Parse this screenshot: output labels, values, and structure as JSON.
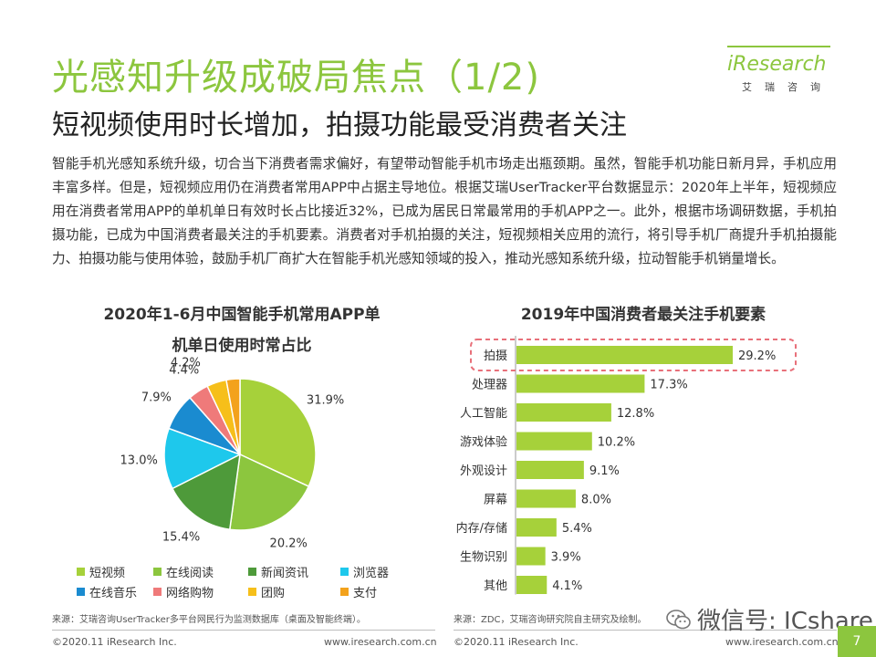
{
  "header": {
    "title": "光感知升级成破局焦点（1/2)",
    "subtitle": "短视频使用时长增加，拍摄功能最受消费者关注"
  },
  "logo": {
    "brand": "iResearch",
    "cn": "艾瑞咨询"
  },
  "intro": "智能手机光感知系统升级，切合当下消费者需求偏好，有望带动智能手机市场走出瓶颈期。虽然，智能手机功能日新月异，手机应用丰富多样。但是，短视频应用仍在消费者常用APP中占据主导地位。根据艾瑞UserTracker平台数据显示：2020年上半年，短视频应用在消费者常用APP的单机单日有效时长占比接近32%，已成为居民日常最常用的手机APP之一。此外，根据市场调研数据，手机拍摄功能，已成为中国消费者最关注的手机要素。消费者对手机拍摄的关注，短视频相关应用的流行，将引导手机厂商提升手机拍摄能力、拍摄功能与使用体验，鼓励手机厂商扩大在智能手机光感知领域的投入，推动光感知系统升级，拉动智能手机销量增长。",
  "chart_data": [
    {
      "type": "pie",
      "title_line1": "2020年1-6月中国智能手机常用APP单",
      "title_line2": "机单日使用时常占比",
      "slices": [
        {
          "name": "短视频",
          "value": 31.9,
          "label": "31.9%",
          "color": "#a6d13a"
        },
        {
          "name": "在线阅读",
          "value": 20.2,
          "label": "20.2%",
          "color": "#8cc63e"
        },
        {
          "name": "新闻资讯",
          "value": 15.4,
          "label": "15.4%",
          "color": "#4e9a3a"
        },
        {
          "name": "浏览器",
          "value": 13.0,
          "label": "13.0%",
          "color": "#1ec8ec"
        },
        {
          "name": "在线音乐",
          "value": 7.9,
          "label": "7.9%",
          "color": "#1a8bd0"
        },
        {
          "name": "网络购物",
          "value": 4.4,
          "label": "4.4%",
          "color": "#ef7a7a"
        },
        {
          "name": "团购",
          "value": 4.2,
          "label": "4.2%",
          "color": "#f6bf1a"
        },
        {
          "name": "支付",
          "value": 2.9,
          "label": "2.9%",
          "color": "#f3a21c"
        }
      ]
    },
    {
      "type": "bar",
      "orientation": "horizontal",
      "title": "2019年中国消费者最关注手机要素",
      "categories": [
        "拍摄",
        "处理器",
        "人工智能",
        "游戏体验",
        "外观设计",
        "屏幕",
        "内存/存储",
        "生物识别",
        "其他"
      ],
      "values": [
        29.2,
        17.3,
        12.8,
        10.2,
        9.1,
        8.0,
        5.4,
        3.9,
        4.1
      ],
      "labels": [
        "29.2%",
        "17.3%",
        "12.8%",
        "10.2%",
        "9.1%",
        "8.0%",
        "5.4%",
        "3.9%",
        "4.1%"
      ],
      "color": "#a6d13a",
      "highlight": "拍摄",
      "highlight_color": "#e8707a"
    }
  ],
  "sources": {
    "left": "来源：艾瑞咨询UserTracker多平台网民行为监测数据库（桌面及智能终端）。",
    "right": "来源：ZDC，艾瑞咨询研究院自主研究及绘制。"
  },
  "footer": {
    "left_copyright": "©2020.11 iResearch Inc.",
    "left_url": "www.iresearch.com.cn",
    "right_copyright": "©2020.11 iResearch Inc.",
    "right_url": "www.iresearch.com.cn",
    "page": "7"
  },
  "watermark": "微信号: ICshare"
}
